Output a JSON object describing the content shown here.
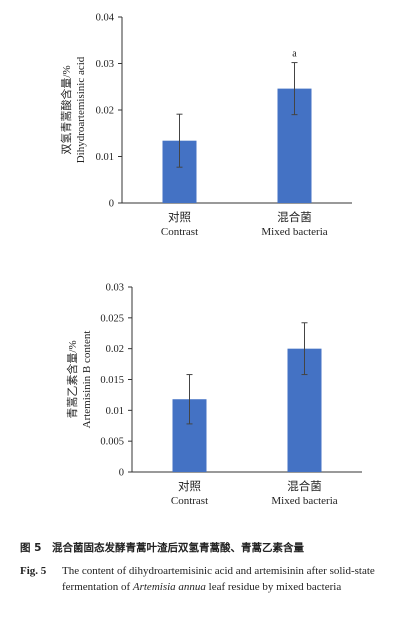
{
  "chart_data": [
    {
      "type": "bar",
      "ylabel_zh": "双氢青蒿酸含量/%",
      "ylabel_en": "Dihydroartemisinic acid",
      "categories": [
        {
          "zh": "对照",
          "en": "Contrast"
        },
        {
          "zh": "混合菌",
          "en": "Mixed bacteria"
        }
      ],
      "values": [
        0.0134,
        0.0246
      ],
      "errors": [
        0.0057,
        0.0056
      ],
      "significance": [
        "",
        "a"
      ],
      "ylim": [
        0,
        0.04
      ],
      "yticks": [
        "0",
        "0.01",
        "0.02",
        "0.03",
        "0.04"
      ],
      "bar_color": "#4472C4",
      "grid": false
    },
    {
      "type": "bar",
      "ylabel_zh": "青蒿乙素含量/%",
      "ylabel_en": "Artemisinin B content",
      "categories": [
        {
          "zh": "对照",
          "en": "Contrast"
        },
        {
          "zh": "混合菌",
          "en": "Mixed bacteria"
        }
      ],
      "values": [
        0.0118,
        0.02
      ],
      "errors": [
        0.004,
        0.0042
      ],
      "significance": [
        "",
        ""
      ],
      "ylim": [
        0,
        0.03
      ],
      "yticks": [
        "0",
        "0.005",
        "0.01",
        "0.015",
        "0.02",
        "0.025",
        "0.03"
      ],
      "bar_color": "#4472C4",
      "grid": false
    }
  ],
  "caption": {
    "zh": "图 5　混合菌固态发酵青蒿叶渣后双氢青蒿酸、青蒿乙素含量",
    "en_label": "Fig. 5",
    "en_text_1": "The content of dihydroartemisinic acid and artemisinin after solid-state fermentation of ",
    "en_text_italic": "Artemisia annua",
    "en_text_2": " leaf residue by mixed bacteria"
  }
}
